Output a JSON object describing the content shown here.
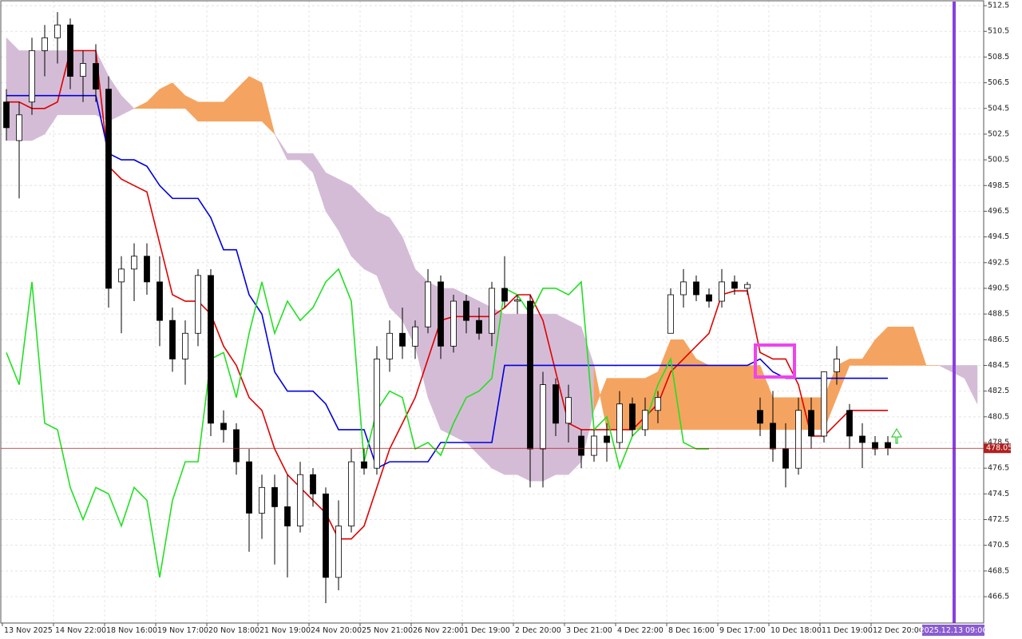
{
  "chart_data": {
    "type": "candlestick",
    "ylim": [
      464.45,
      512.94
    ],
    "yticks": [
      466.5,
      468.5,
      470.5,
      472.5,
      474.5,
      476.5,
      478.5,
      480.5,
      482.5,
      484.5,
      486.5,
      488.5,
      490.5,
      492.5,
      494.5,
      496.5,
      498.5,
      500.5,
      502.5,
      504.5,
      506.5,
      508.5,
      510.5,
      512.5
    ],
    "grid": true,
    "x_labels": [
      "13 Nov 2025",
      "14 Nov 22:00",
      "18 Nov 16:00",
      "19 Nov 17:00",
      "20 Nov 18:00",
      "21 Nov 19:00",
      "24 Nov 20:00",
      "25 Nov 21:00",
      "26 Nov 22:00",
      "1 Dec 19:00",
      "2 Dec 20:00",
      "3 Dec 21:00",
      "4 Dec 22:00",
      "8 Dec 16:00",
      "9 Dec 17:00",
      "10 Dec 18:00",
      "11 Dec 19:00",
      "12 Dec 20:00"
    ],
    "cursor_time": "2025.12.13 09:00",
    "last_price": 478.05,
    "ohlc": [
      [
        505,
        506,
        502,
        503
      ],
      [
        502,
        505,
        497.5,
        504
      ],
      [
        505,
        510,
        504,
        509
      ],
      [
        509,
        511,
        507,
        510
      ],
      [
        510,
        512,
        508,
        511
      ],
      [
        511,
        511.5,
        506,
        507
      ],
      [
        507,
        509,
        505,
        508
      ],
      [
        508,
        509.5,
        505,
        506
      ],
      [
        506,
        507,
        489,
        490.5
      ],
      [
        491,
        493,
        487,
        492
      ],
      [
        492,
        494,
        489.5,
        493
      ],
      [
        493,
        494,
        490,
        491
      ],
      [
        491,
        493,
        486,
        488
      ],
      [
        488,
        489,
        484,
        485
      ],
      [
        485,
        488,
        483,
        487
      ],
      [
        487,
        492,
        486,
        491.5
      ],
      [
        491.5,
        492,
        479,
        480
      ],
      [
        480,
        481,
        478.5,
        479.5
      ],
      [
        479.5,
        480,
        476,
        477
      ],
      [
        477,
        478,
        470,
        473
      ],
      [
        473,
        476,
        471,
        475
      ],
      [
        475,
        476,
        469,
        473.5
      ],
      [
        473.5,
        476,
        468,
        472
      ],
      [
        472,
        477,
        471.5,
        476
      ],
      [
        476,
        476.5,
        473.5,
        474.5
      ],
      [
        474.5,
        475,
        466,
        468
      ],
      [
        468,
        474,
        467,
        472
      ],
      [
        472,
        478,
        471.5,
        477
      ],
      [
        477,
        478,
        476,
        476.5
      ],
      [
        476.5,
        486,
        476,
        485
      ],
      [
        485,
        488,
        484,
        487
      ],
      [
        487,
        489,
        485,
        486
      ],
      [
        486,
        488,
        485,
        487.5
      ],
      [
        487.5,
        492,
        487,
        491
      ],
      [
        491,
        491.5,
        485,
        486
      ],
      [
        486,
        490,
        485.5,
        489.5
      ],
      [
        489.5,
        490,
        487,
        488
      ],
      [
        488,
        489,
        486.5,
        487
      ],
      [
        487,
        491,
        486,
        490.5
      ],
      [
        490.5,
        493,
        489,
        489.5
      ],
      [
        489.5,
        490,
        488.5,
        489.6
      ],
      [
        489.5,
        490,
        475,
        478
      ],
      [
        478,
        484,
        475,
        483
      ],
      [
        483,
        483.5,
        479,
        480
      ],
      [
        480,
        483,
        478.5,
        482
      ],
      [
        479,
        479.5,
        476.5,
        477.5
      ],
      [
        477.5,
        479.5,
        477,
        479
      ],
      [
        479,
        480,
        477,
        478.5
      ],
      [
        478.5,
        482.5,
        478,
        481.5
      ],
      [
        481.5,
        482,
        479,
        479.5
      ],
      [
        479.5,
        482,
        479,
        481
      ],
      [
        481,
        482.5,
        480,
        482
      ],
      [
        487,
        490.5,
        487,
        490
      ],
      [
        490,
        492,
        489,
        491
      ],
      [
        491,
        491.5,
        489.5,
        490
      ],
      [
        490,
        490.5,
        489,
        489.5
      ],
      [
        489.5,
        492,
        489,
        491
      ],
      [
        491,
        491.5,
        490,
        490.5
      ],
      [
        490.5,
        491,
        490,
        490.8
      ],
      [
        481,
        482,
        479,
        480
      ],
      [
        480,
        482.5,
        477,
        478
      ],
      [
        478,
        480,
        475,
        476.5
      ],
      [
        476.5,
        482,
        476,
        481
      ],
      [
        481,
        482,
        478,
        479
      ],
      [
        479,
        484,
        478.5,
        484
      ],
      [
        484,
        486,
        483,
        485
      ],
      [
        481,
        481.5,
        478,
        479
      ],
      [
        479,
        480,
        476.5,
        478.5
      ],
      [
        478.5,
        479,
        477.5,
        478
      ],
      [
        478.5,
        479,
        477.5,
        478.05
      ]
    ],
    "lines": [
      {
        "color": "#e00000",
        "values": [
          505,
          505,
          504.5,
          504.5,
          505,
          509,
          509,
          509,
          500,
          499,
          498.5,
          498,
          494,
          490,
          489.5,
          489.5,
          488.5,
          486,
          484.5,
          482,
          481,
          478,
          476,
          475,
          474,
          473,
          471,
          471,
          472,
          475,
          478,
          480,
          482,
          485,
          488,
          488.3,
          488.3,
          488.3,
          488.3,
          489,
          490,
          490,
          488,
          484,
          480,
          479.5,
          479.5,
          479.5,
          479.5,
          479.5,
          480.5,
          481.5,
          484,
          485,
          486,
          487,
          490,
          490.3,
          490.3,
          485.5,
          485,
          485,
          483,
          479,
          479,
          480,
          481,
          481,
          481,
          481
        ]
      },
      {
        "color": "#0000dd",
        "values": [
          505.5,
          505.5,
          505.5,
          505.5,
          505.5,
          505.5,
          505.5,
          505.5,
          501,
          500.5,
          500.5,
          500,
          498.5,
          497.5,
          497.5,
          497.5,
          496,
          493.5,
          493.5,
          490,
          488.5,
          484,
          482.5,
          482.5,
          482.5,
          481.5,
          479.5,
          479.5,
          479.5,
          476.5,
          477,
          477,
          477,
          477,
          478.5,
          478.5,
          478.5,
          478.5,
          478.5,
          484.5,
          484.5,
          484.5,
          484.5,
          484.5,
          484.5,
          484.5,
          484.5,
          484.5,
          484.5,
          484.5,
          484.5,
          484.5,
          484.5,
          484.5,
          484.5,
          484.5,
          484.5,
          484.5,
          484.5,
          485,
          484,
          483.5,
          483.5,
          483.5,
          483.5,
          483.5,
          483.5,
          483.5,
          483.5,
          483.5
        ]
      },
      {
        "color": "#22e022",
        "values": [
          485.5,
          483,
          491,
          480,
          479.5,
          475,
          472.5,
          475,
          474.5,
          472,
          475,
          474,
          468,
          474,
          477,
          477,
          485,
          485.5,
          482,
          487,
          491,
          487,
          489.5,
          488,
          489,
          491,
          492,
          489.5,
          477,
          481,
          482.5,
          482,
          478,
          478.5,
          477.5,
          480,
          482,
          482.5,
          483.5,
          490.5,
          490,
          488.5,
          490.5,
          490.5,
          490,
          491,
          479.5,
          480.5,
          476.5,
          479,
          480,
          483,
          485,
          478.5,
          478,
          478
        ]
      }
    ],
    "cloud": {
      "bull_color": "#f4a460",
      "bear_color": "#d4bcd6",
      "span_a": [
        502,
        502,
        502,
        502.5,
        504,
        504,
        504,
        504,
        503.5,
        504,
        504.5,
        505,
        506,
        506.5,
        505.5,
        505,
        505,
        505,
        506,
        507,
        506.5,
        502.5,
        500.5,
        500.5,
        499.5,
        496.5,
        495,
        493,
        492,
        491.5,
        489,
        488,
        486,
        482,
        479.5,
        479,
        478.5,
        477.5,
        476.5,
        476,
        476,
        475.5,
        475.5,
        476,
        476,
        477,
        481,
        483.5,
        483.5,
        483.5,
        483.5,
        484,
        486.5,
        486.5,
        485,
        484.5,
        484.5,
        484.5,
        484.5,
        484.5,
        482,
        482,
        482,
        482,
        482,
        484.5,
        485,
        485,
        486.5,
        487.5,
        487.5,
        487.5,
        484.5,
        484.5,
        484,
        483.5,
        481.5
      ],
      "span_b": [
        510,
        509,
        509,
        509,
        509,
        509,
        509,
        509,
        507,
        505.5,
        504.5,
        504.5,
        504.5,
        504.5,
        504.5,
        503.5,
        503.5,
        503.5,
        503.5,
        503.5,
        503.5,
        502.5,
        501,
        501,
        501,
        499.5,
        499,
        498.5,
        497.5,
        496.5,
        496,
        494.5,
        492,
        491,
        490.5,
        490.5,
        490,
        489.5,
        489,
        488.5,
        488.5,
        488.5,
        488.5,
        488.5,
        488,
        487.5,
        484.5,
        479.5,
        479.5,
        479.5,
        479.5,
        479.5,
        479.5,
        479.5,
        479.5,
        479.5,
        479.5,
        479.5,
        479.5,
        479.5,
        479.5,
        479.5,
        479.5,
        479.5,
        479.5,
        482,
        484.5,
        484.5,
        484.5,
        484.5,
        484.5,
        484.5,
        484.5,
        484.5,
        484.5,
        484.5,
        484.5
      ]
    }
  }
}
